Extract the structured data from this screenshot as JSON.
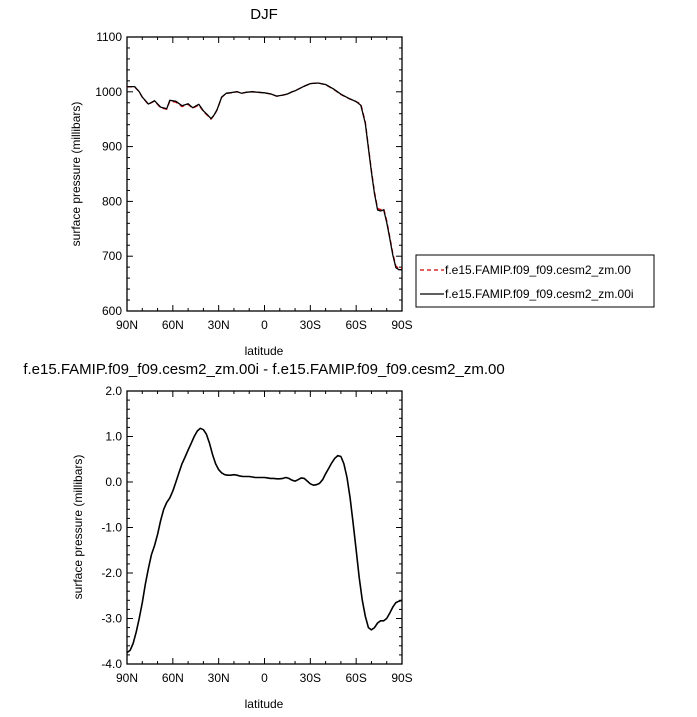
{
  "chart_data": [
    {
      "type": "line",
      "title": "DJF",
      "xlabel": "latitude",
      "ylabel": "surface pressure (millibars)",
      "x_ticks": [
        90,
        60,
        30,
        0,
        -30,
        -60,
        -90
      ],
      "x_tick_labels": [
        "90N",
        "60N",
        "30N",
        "0",
        "30S",
        "60S",
        "90S"
      ],
      "xlim": [
        90,
        -90
      ],
      "ylim": [
        600,
        1100
      ],
      "y_ticks": [
        600,
        700,
        800,
        900,
        1000,
        1100
      ],
      "y_tick_labels": [
        "600",
        "700",
        "800",
        "900",
        "1000",
        "1100"
      ],
      "legend_position": "right",
      "series": [
        {
          "name": "f.e15.FAMIP.f09_f09.cesm2_zm.00",
          "color": "#cc0000",
          "dash": "dashed",
          "x": [
            90,
            85,
            82,
            80,
            76,
            72,
            68,
            64,
            62,
            58,
            54,
            50,
            47,
            43,
            40,
            37,
            35,
            33,
            31,
            28,
            25,
            22,
            18,
            15,
            12,
            8,
            4,
            0,
            -4,
            -8,
            -12,
            -15,
            -18,
            -20,
            -25,
            -30,
            -35,
            -40,
            -45,
            -50,
            -55,
            -60,
            -63,
            -66,
            -68,
            -70,
            -72,
            -74,
            -76,
            -78,
            -80,
            -82,
            -84,
            -86,
            -88,
            -90
          ],
          "y": [
            1009,
            1009,
            1000,
            990,
            977,
            983,
            971,
            968,
            983,
            981,
            973,
            977,
            970,
            976,
            964,
            956,
            950,
            957,
            967,
            990,
            997,
            998,
            1000,
            997,
            999,
            1000,
            999,
            998,
            996,
            992,
            994,
            996,
            1000,
            1002,
            1009,
            1015,
            1016,
            1013,
            1005,
            995,
            988,
            982,
            978,
            945,
            900,
            857,
            817,
            787,
            785,
            787,
            765,
            735,
            705,
            682,
            678,
            678
          ]
        },
        {
          "name": "f.e15.FAMIP.f09_f09.cesm2_zm.00i",
          "color": "#000000",
          "dash": "solid",
          "x": [
            90,
            85,
            82,
            80,
            76,
            72,
            68,
            64,
            62,
            58,
            54,
            50,
            47,
            43,
            40,
            37,
            35,
            33,
            31,
            28,
            25,
            22,
            18,
            15,
            12,
            8,
            4,
            0,
            -4,
            -8,
            -12,
            -15,
            -18,
            -20,
            -25,
            -30,
            -35,
            -40,
            -45,
            -50,
            -55,
            -60,
            -63,
            -66,
            -68,
            -70,
            -72,
            -74,
            -76,
            -78,
            -80,
            -82,
            -84,
            -86,
            -88,
            -90
          ],
          "y": [
            1009.5,
            1009.4,
            1000.1,
            990.3,
            977.5,
            983.7,
            972,
            969.2,
            984.4,
            982.6,
            974.6,
            978.2,
            971,
            977.2,
            965.1,
            957.1,
            950.9,
            957.7,
            967.6,
            990.5,
            997.4,
            998.4,
            1000.3,
            997.2,
            999.1,
            1000.1,
            999.1,
            998.1,
            996.1,
            992.1,
            994,
            995.9,
            999.9,
            1001.9,
            1008.9,
            1015,
            1016,
            1013.4,
            1005.5,
            995.6,
            988.3,
            982.1,
            975.6,
            942.4,
            897,
            853.9,
            813.9,
            784.3,
            782.5,
            784.4,
            761.8,
            732.1,
            702.2,
            679,
            675.3,
            675.4
          ]
        }
      ]
    },
    {
      "type": "line",
      "title": "f.e15.FAMIP.f09_f09.cesm2_zm.00i - f.e15.FAMIP.f09_f09.cesm2_zm.00",
      "xlabel": "latitude",
      "ylabel": "surface pressure (millibars)",
      "x_ticks": [
        90,
        60,
        30,
        0,
        -30,
        -60,
        -90
      ],
      "x_tick_labels": [
        "90N",
        "60N",
        "30N",
        "0",
        "30S",
        "60S",
        "90S"
      ],
      "xlim": [
        90,
        -90
      ],
      "ylim": [
        -4,
        2
      ],
      "y_ticks": [
        -4,
        -3,
        -2,
        -1,
        0,
        1,
        2
      ],
      "y_tick_labels": [
        "-4.0",
        "-3.0",
        "-2.0",
        "-1.0",
        "0.0",
        "1.0",
        "2.0"
      ],
      "series": [
        {
          "color": "#000000",
          "dash": "solid",
          "x": [
            90,
            88,
            86,
            84,
            82,
            80,
            78,
            76,
            74,
            72,
            70,
            68,
            66,
            64,
            62,
            60,
            58,
            56,
            54,
            52,
            50,
            48,
            46,
            44,
            42,
            40,
            38,
            36,
            34,
            32,
            30,
            28,
            26,
            24,
            22,
            20,
            18,
            16,
            14,
            12,
            10,
            8,
            6,
            4,
            2,
            0,
            -2,
            -4,
            -6,
            -8,
            -10,
            -12,
            -14,
            -16,
            -18,
            -20,
            -22,
            -24,
            -26,
            -28,
            -30,
            -32,
            -34,
            -36,
            -38,
            -40,
            -42,
            -44,
            -46,
            -48,
            -50,
            -52,
            -54,
            -56,
            -58,
            -60,
            -62,
            -64,
            -66,
            -68,
            -70,
            -72,
            -74,
            -76,
            -78,
            -80,
            -82,
            -84,
            -86,
            -88,
            -90
          ],
          "y": [
            -3.75,
            -3.7,
            -3.55,
            -3.3,
            -3.0,
            -2.65,
            -2.25,
            -1.9,
            -1.6,
            -1.4,
            -1.15,
            -0.85,
            -0.6,
            -0.45,
            -0.35,
            -0.2,
            0.0,
            0.2,
            0.4,
            0.55,
            0.7,
            0.85,
            1.0,
            1.12,
            1.18,
            1.15,
            1.05,
            0.85,
            0.6,
            0.4,
            0.27,
            0.2,
            0.16,
            0.15,
            0.15,
            0.16,
            0.15,
            0.13,
            0.12,
            0.12,
            0.12,
            0.11,
            0.1,
            0.1,
            0.1,
            0.1,
            0.09,
            0.08,
            0.08,
            0.07,
            0.07,
            0.08,
            0.1,
            0.08,
            0.04,
            0.02,
            0.05,
            0.09,
            0.08,
            0.02,
            -0.04,
            -0.07,
            -0.06,
            -0.03,
            0.05,
            0.18,
            0.3,
            0.42,
            0.52,
            0.58,
            0.56,
            0.4,
            0.1,
            -0.35,
            -0.9,
            -1.5,
            -2.1,
            -2.6,
            -2.95,
            -3.2,
            -3.25,
            -3.2,
            -3.1,
            -3.05,
            -3.05,
            -3.0,
            -2.88,
            -2.75,
            -2.65,
            -2.62,
            -2.6
          ]
        }
      ]
    }
  ]
}
